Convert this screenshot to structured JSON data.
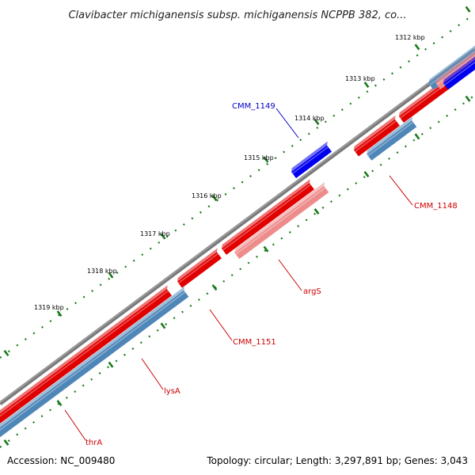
{
  "title": "Clavibacter michiganensis subsp. michiganensis NCPPB 382, co...",
  "footer": {
    "accession": "Accession: NC_009480",
    "summary": "Topology: circular; Length: 3,297,891 bp; Genes: 3,043"
  },
  "colors": {
    "backbone": "#7a7a7a",
    "cds_forward": "#e00000",
    "cds_reverse": "#4f86b8",
    "rna": "#ee8c8c",
    "highlight": "#0000ee",
    "ticks": "#1a7a1a",
    "label_red": "#cc0000",
    "label_blue": "#0000cc"
  },
  "ticks": [
    {
      "label": "1312 kbp"
    },
    {
      "label": "1313 kbp"
    },
    {
      "label": "1314 kbp"
    },
    {
      "label": "1315 kbp"
    },
    {
      "label": "1316 kbp"
    },
    {
      "label": "1317 kbp"
    },
    {
      "label": "1318 kbp"
    },
    {
      "label": "1319 kbp"
    }
  ],
  "gene_labels": [
    {
      "text": "CMM_1149",
      "color": "blue"
    },
    {
      "text": "CMM_1148",
      "color": "red"
    },
    {
      "text": "argS",
      "color": "red"
    },
    {
      "text": "CMM_1151",
      "color": "red"
    },
    {
      "text": "lysA",
      "color": "red"
    },
    {
      "text": "thrA",
      "color": "red"
    }
  ]
}
